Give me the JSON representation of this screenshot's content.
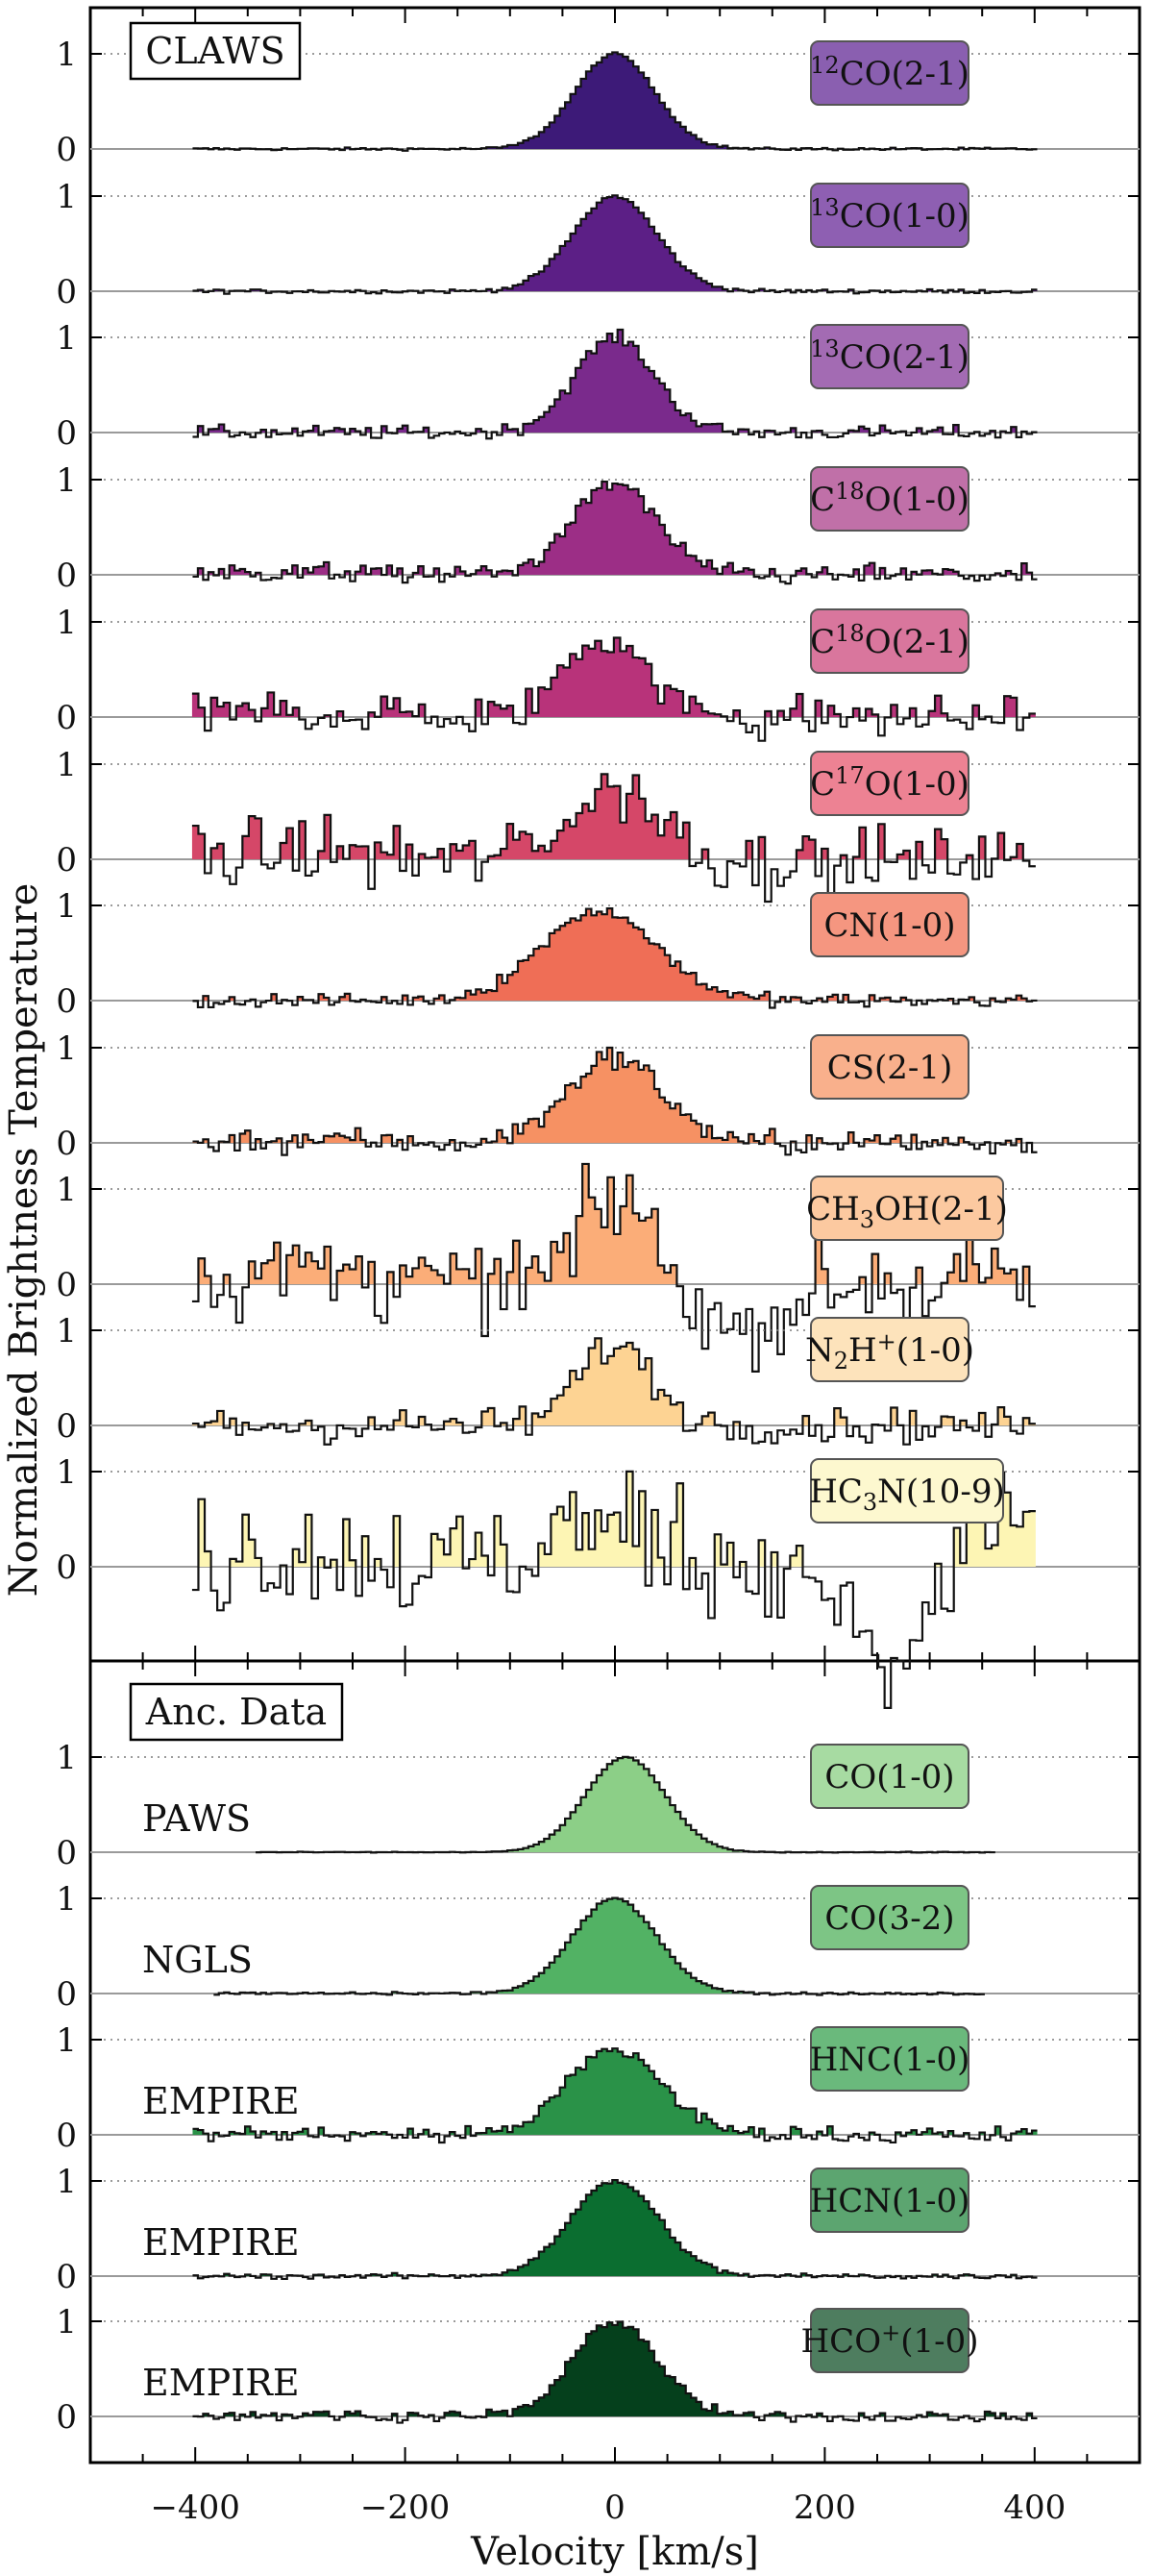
{
  "chart_data": {
    "type": "line",
    "xlabel": "Velocity [km/s]",
    "ylabel": "Normalized Brightness Temperature",
    "xlim": [
      -500,
      500
    ],
    "xticks": [
      -400,
      -200,
      0,
      200,
      400
    ],
    "yticks": [
      0,
      1
    ],
    "ytick_labels": [
      "0",
      "1"
    ],
    "sections": [
      {
        "name": "CLAWS",
        "title": "CLAWS"
      },
      {
        "name": "Anc",
        "title": "Anc. Data"
      }
    ],
    "series": [
      {
        "section": "CLAWS",
        "label_main": "CO(2-1)",
        "label_sup": "12",
        "label_pre": "",
        "color": "#3d1a78",
        "box_color": "#8a5fb0",
        "survey": "",
        "center": 0,
        "width": 38,
        "peak": 1.0,
        "noise": 0.01,
        "xmin": -400,
        "xmax": 400,
        "absorb": 0,
        "baseline_bump": 0
      },
      {
        "section": "CLAWS",
        "label_main": "CO(1-0)",
        "label_sup": "13",
        "label_pre": "",
        "color": "#5c1f86",
        "box_color": "#8e5fb2",
        "survey": "",
        "center": 0,
        "width": 40,
        "peak": 1.0,
        "noise": 0.015,
        "xmin": -400,
        "xmax": 400,
        "absorb": 0,
        "baseline_bump": 0
      },
      {
        "section": "CLAWS",
        "label_main": "CO(2-1)",
        "label_sup": "13",
        "label_pre": "",
        "color": "#7a2a8c",
        "box_color": "#a36bb3",
        "survey": "",
        "center": 0,
        "width": 38,
        "peak": 1.0,
        "noise": 0.05,
        "xmin": -400,
        "xmax": 400,
        "absorb": 0,
        "baseline_bump": 0
      },
      {
        "section": "CLAWS",
        "label_main": "O(1-0)",
        "label_sup": "18",
        "label_pre": "C",
        "color": "#9c2e86",
        "box_color": "#c070a8",
        "survey": "",
        "center": 0,
        "width": 40,
        "peak": 0.95,
        "noise": 0.07,
        "xmin": -400,
        "xmax": 400,
        "absorb": 0,
        "baseline_bump": 0.05
      },
      {
        "section": "CLAWS",
        "label_main": "O(2-1)",
        "label_sup": "18",
        "label_pre": "C",
        "color": "#b8337a",
        "box_color": "#d9769d",
        "survey": "",
        "center": -10,
        "width": 38,
        "peak": 0.85,
        "noise": 0.16,
        "xmin": -400,
        "xmax": 400,
        "absorb": 0,
        "baseline_bump": 0.1
      },
      {
        "section": "CLAWS",
        "label_main": "O(1-0)",
        "label_sup": "17",
        "label_pre": "C",
        "color": "#d54768",
        "box_color": "#ed8293",
        "survey": "",
        "center": 0,
        "width": 40,
        "peak": 0.8,
        "noise": 0.25,
        "xmin": -400,
        "xmax": 400,
        "absorb": 0,
        "baseline_bump": 0.15
      },
      {
        "section": "CLAWS",
        "label_main": "CN(1-0)",
        "label_sup": "",
        "label_pre": "",
        "color": "#ef6e56",
        "box_color": "#f59680",
        "survey": "",
        "center": -15,
        "width": 55,
        "peak": 0.95,
        "noise": 0.05,
        "xmin": -400,
        "xmax": 400,
        "absorb": 0,
        "baseline_bump": 0
      },
      {
        "section": "CLAWS",
        "label_main": "CS(2-1)",
        "label_sup": "",
        "label_pre": "",
        "color": "#f69163",
        "box_color": "#f9b08c",
        "survey": "",
        "center": 0,
        "width": 45,
        "peak": 0.9,
        "noise": 0.09,
        "xmin": -400,
        "xmax": 400,
        "absorb": 0,
        "baseline_bump": 0.05
      },
      {
        "section": "CLAWS",
        "label_main": "CH3OH(2-1)",
        "label_sup": "",
        "label_pre": "",
        "color": "#fbad78",
        "box_color": "#fcc9a0",
        "survey": "",
        "center": 0,
        "width": 35,
        "peak": 0.9,
        "noise": 0.3,
        "xmin": -400,
        "xmax": 400,
        "absorb": 1,
        "baseline_bump": 0.2
      },
      {
        "section": "CLAWS",
        "label_main": "N2H+(1-0)",
        "label_sup": "",
        "label_pre": "",
        "color": "#fdd393",
        "box_color": "#fde3bb",
        "survey": "",
        "center": 0,
        "width": 35,
        "peak": 0.85,
        "noise": 0.13,
        "xmin": -400,
        "xmax": 400,
        "absorb": 0,
        "baseline_bump": 0
      },
      {
        "section": "CLAWS",
        "label_main": "HC3N(10-9)",
        "label_sup": "",
        "label_pre": "",
        "color": "#fdf5b4",
        "box_color": "#fdf8cf",
        "survey": "",
        "center": 0,
        "width": 60,
        "peak": 0.45,
        "noise": 0.45,
        "xmin": -400,
        "xmax": 400,
        "absorb": 2,
        "baseline_bump": 0.3
      },
      {
        "section": "Anc",
        "label_main": "CO(1-0)",
        "label_sup": "",
        "label_pre": "",
        "color": "#8ccf87",
        "box_color": "#a7dba2",
        "survey": "PAWS",
        "center": 10,
        "width": 38,
        "peak": 1.0,
        "noise": 0.003,
        "xmin": -340,
        "xmax": 360,
        "absorb": 0,
        "baseline_bump": 0
      },
      {
        "section": "Anc",
        "label_main": "CO(3-2)",
        "label_sup": "",
        "label_pre": "",
        "color": "#52b264",
        "box_color": "#7dc585",
        "survey": "NGLS",
        "center": 0,
        "width": 40,
        "peak": 1.0,
        "noise": 0.01,
        "xmin": -380,
        "xmax": 350,
        "absorb": 0,
        "baseline_bump": 0
      },
      {
        "section": "Anc",
        "label_main": "HNC(1-0)",
        "label_sup": "",
        "label_pre": "",
        "color": "#2a9248",
        "box_color": "#6ab97c",
        "survey": "EMPIRE",
        "center": 0,
        "width": 45,
        "peak": 0.9,
        "noise": 0.06,
        "xmin": -400,
        "xmax": 400,
        "absorb": 0,
        "baseline_bump": 0.02
      },
      {
        "section": "Anc",
        "label_main": "HCN(1-0)",
        "label_sup": "",
        "label_pre": "",
        "color": "#0b6e30",
        "box_color": "#5ca570",
        "survey": "EMPIRE",
        "center": 0,
        "width": 42,
        "peak": 1.0,
        "noise": 0.02,
        "xmin": -400,
        "xmax": 400,
        "absorb": 0,
        "baseline_bump": 0
      },
      {
        "section": "Anc",
        "label_main": "HCO+(1-0)",
        "label_sup": "",
        "label_pre": "",
        "color": "#05401c",
        "box_color": "#4e7d5f",
        "survey": "EMPIRE",
        "center": 0,
        "width": 40,
        "peak": 1.0,
        "noise": 0.04,
        "xmin": -400,
        "xmax": 400,
        "absorb": 0,
        "baseline_bump": 0.03
      }
    ]
  }
}
